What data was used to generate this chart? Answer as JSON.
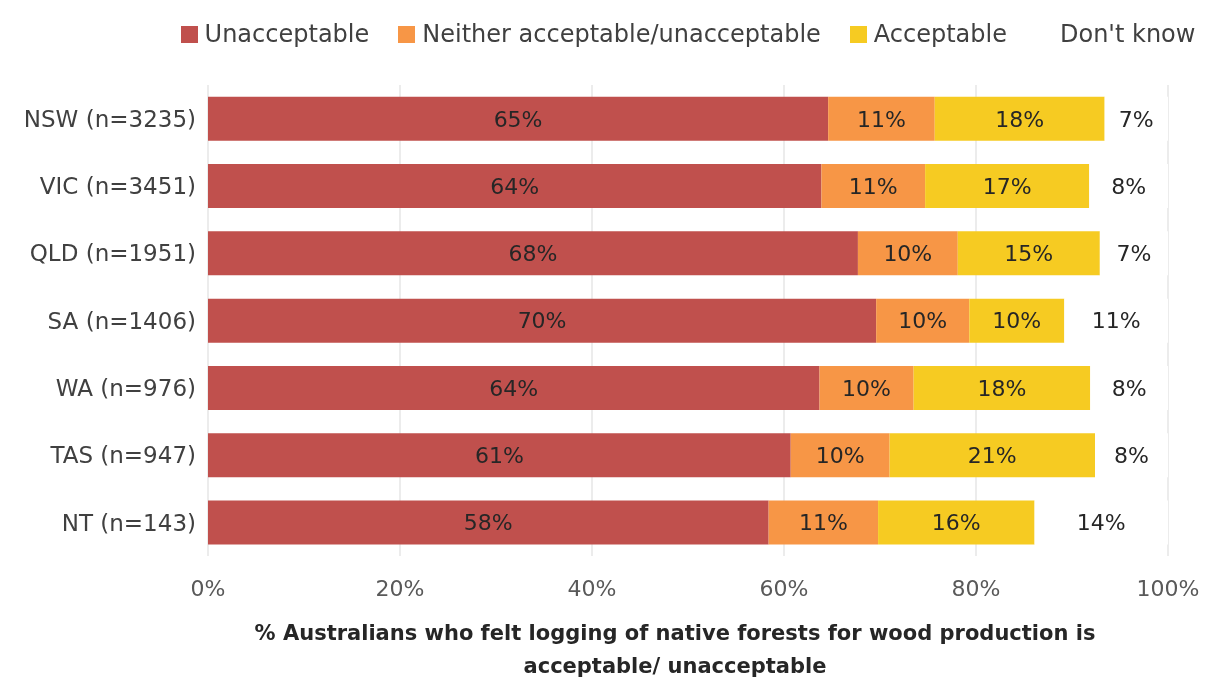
{
  "chart_data": {
    "type": "bar",
    "orientation": "horizontal",
    "stacked": true,
    "categories": [
      "NSW (n=3235)",
      "VIC (n=3451)",
      "QLD (n=1951)",
      "SA (n=1406)",
      "WA (n=976)",
      "TAS (n=947)",
      "NT (n=143)"
    ],
    "series": [
      {
        "name": "Unacceptable",
        "color": "#c0504d",
        "values": [
          64.6,
          63.9,
          67.7,
          69.6,
          63.7,
          60.7,
          58.4
        ],
        "value_labels": [
          "65%",
          "64%",
          "68%",
          "70%",
          "64%",
          "61%",
          "58%"
        ]
      },
      {
        "name": "Neither acceptable/unacceptable",
        "color": "#f79646",
        "values": [
          11.1,
          10.8,
          10.4,
          9.7,
          9.8,
          10.3,
          11.4
        ],
        "value_labels": [
          "11%",
          "11%",
          "10%",
          "10%",
          "10%",
          "10%",
          "11%"
        ]
      },
      {
        "name": "Acceptable",
        "color": "#f6cb22",
        "values": [
          17.7,
          17.1,
          14.8,
          9.9,
          18.4,
          21.4,
          16.3
        ],
        "value_labels": [
          "18%",
          "17%",
          "15%",
          "10%",
          "18%",
          "21%",
          "16%"
        ]
      },
      {
        "name": "Don't know",
        "color": "#ffffff",
        "values": [
          6.6,
          8.2,
          7.1,
          10.8,
          8.1,
          7.6,
          13.9
        ],
        "value_labels": [
          "7%",
          "8%",
          "7%",
          "11%",
          "8%",
          "8%",
          "14%"
        ]
      }
    ],
    "xlim": [
      0,
      100
    ],
    "xticks": [
      {
        "value": 0,
        "label": "0%"
      },
      {
        "value": 20,
        "label": "20%"
      },
      {
        "value": 40,
        "label": "40%"
      },
      {
        "value": 60,
        "label": "60%"
      },
      {
        "value": 80,
        "label": "80%"
      },
      {
        "value": 100,
        "label": "100%"
      }
    ],
    "xlabel": "% Australians who felt logging of native forests for wood production is acceptable/ unacceptable",
    "grid": "x",
    "legend": "top"
  }
}
